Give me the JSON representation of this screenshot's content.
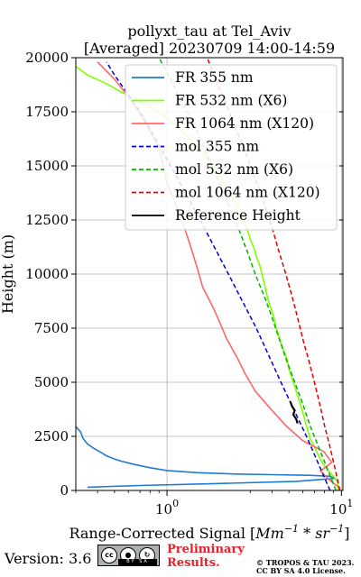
{
  "chart_data": {
    "type": "line",
    "title_line1": "pollyxt_tau at Tel_Aviv",
    "title_line2": "[Averaged] 20230709 14:00-14:59",
    "xlabel_prefix": "Range-Corrected Signal [",
    "xlabel_math": "Mm",
    "xlabel_exp1": "−1",
    "xlabel_mid": " * ",
    "xlabel_math2": "sr",
    "xlabel_exp2": "−1",
    "xlabel_suffix": "]",
    "ylabel": "Height (m)",
    "xscale": "log",
    "xlim": [
      0.3,
      10.2
    ],
    "ylim": [
      0,
      20000
    ],
    "grid": true,
    "legend_position": "top-right",
    "x_ticks": [
      {
        "value": 1,
        "base": "10",
        "exp": "0"
      },
      {
        "value": 10,
        "base": "10",
        "exp": "1"
      }
    ],
    "y_ticks": [
      0,
      2500,
      5000,
      7500,
      10000,
      12500,
      15000,
      17500,
      20000
    ],
    "series": [
      {
        "name": "FR 355 nm",
        "color": "#1f7ad6",
        "style": "solid",
        "points": [
          [
            0.3,
            2950
          ],
          [
            0.32,
            2700
          ],
          [
            0.33,
            2400
          ],
          [
            0.35,
            2150
          ],
          [
            0.38,
            1950
          ],
          [
            0.42,
            1750
          ],
          [
            0.45,
            1600
          ],
          [
            0.5,
            1450
          ],
          [
            0.55,
            1350
          ],
          [
            0.65,
            1200
          ],
          [
            0.8,
            1050
          ],
          [
            1.0,
            920
          ],
          [
            1.5,
            820
          ],
          [
            2.5,
            760
          ],
          [
            4.0,
            730
          ],
          [
            6.5,
            700
          ],
          [
            8.5,
            660
          ],
          [
            9.3,
            560
          ],
          [
            5.5,
            420
          ],
          [
            2.0,
            320
          ],
          [
            0.7,
            230
          ],
          [
            0.35,
            150
          ]
        ]
      },
      {
        "name": "FR 532 nm (X6)",
        "color": "#80ff00",
        "style": "solid",
        "points": [
          [
            9.6,
            30
          ],
          [
            9.5,
            400
          ],
          [
            9.0,
            650
          ],
          [
            8.3,
            950
          ],
          [
            7.8,
            1250
          ],
          [
            7.4,
            1600
          ],
          [
            7.0,
            2000
          ],
          [
            6.6,
            2400
          ],
          [
            6.4,
            2800
          ],
          [
            6.2,
            3200
          ],
          [
            6.0,
            3600
          ],
          [
            5.8,
            4000
          ],
          [
            5.6,
            4400
          ],
          [
            5.4,
            4800
          ],
          [
            5.2,
            5200
          ],
          [
            5.0,
            5600
          ],
          [
            4.9,
            6000
          ],
          [
            4.7,
            6400
          ],
          [
            4.5,
            6800
          ],
          [
            4.35,
            7200
          ],
          [
            4.2,
            7600
          ],
          [
            4.1,
            8000
          ],
          [
            3.95,
            8400
          ],
          [
            3.8,
            8800
          ],
          [
            3.7,
            9200
          ],
          [
            3.6,
            9600
          ],
          [
            3.5,
            10000
          ],
          [
            3.4,
            10400
          ],
          [
            3.25,
            10800
          ],
          [
            3.15,
            11200
          ],
          [
            3.0,
            11600
          ],
          [
            2.9,
            12000
          ],
          [
            2.8,
            12400
          ],
          [
            2.7,
            12800
          ],
          [
            2.5,
            13200
          ],
          [
            2.35,
            13600
          ],
          [
            2.2,
            14000
          ],
          [
            2.05,
            14400
          ],
          [
            1.9,
            14800
          ],
          [
            1.75,
            15200
          ],
          [
            1.6,
            15600
          ],
          [
            1.45,
            16000
          ],
          [
            1.3,
            16400
          ],
          [
            1.15,
            16800
          ],
          [
            1.0,
            17200
          ],
          [
            0.85,
            17600
          ],
          [
            0.7,
            18000
          ],
          [
            0.55,
            18400
          ],
          [
            0.45,
            18800
          ],
          [
            0.35,
            19200
          ],
          [
            0.3,
            19600
          ]
        ]
      },
      {
        "name": "FR 1064 nm (X120)",
        "color": "#ff6666",
        "style": "solid",
        "points": [
          [
            9.8,
            100
          ],
          [
            8.5,
            500
          ],
          [
            7.6,
            900
          ],
          [
            8.8,
            1300
          ],
          [
            7.9,
            1800
          ],
          [
            6.0,
            2300
          ],
          [
            4.8,
            3000
          ],
          [
            3.9,
            3800
          ],
          [
            3.2,
            4600
          ],
          [
            2.8,
            5400
          ],
          [
            2.5,
            6200
          ],
          [
            2.2,
            7000
          ],
          [
            2.0,
            7800
          ],
          [
            1.8,
            8600
          ],
          [
            1.6,
            9400
          ],
          [
            1.5,
            10200
          ],
          [
            1.4,
            11000
          ],
          [
            1.3,
            11800
          ],
          [
            1.2,
            12600
          ],
          [
            1.1,
            13400
          ],
          [
            1.0,
            14200
          ],
          [
            0.95,
            15000
          ],
          [
            0.9,
            15800
          ],
          [
            0.8,
            16600
          ],
          [
            0.7,
            17400
          ],
          [
            0.6,
            18200
          ],
          [
            0.5,
            19000
          ],
          [
            0.4,
            19800
          ]
        ]
      },
      {
        "name": "mol 355 nm",
        "color": "#0000d9",
        "style": "dashed",
        "points": [
          [
            8.6,
            0
          ],
          [
            6.3,
            2500
          ],
          [
            4.5,
            5000
          ],
          [
            3.25,
            7500
          ],
          [
            2.25,
            10000
          ],
          [
            1.55,
            12500
          ],
          [
            1.05,
            15000
          ],
          [
            0.7,
            17500
          ],
          [
            0.5,
            19200
          ],
          [
            0.45,
            19800
          ]
        ]
      },
      {
        "name": "mol 532 nm (X6)",
        "color": "#00b300",
        "style": "dashed",
        "points": [
          [
            9.3,
            0
          ],
          [
            8.3,
            1000
          ],
          [
            7.4,
            2000
          ],
          [
            6.6,
            3000
          ],
          [
            6.0,
            4000
          ],
          [
            5.4,
            5000
          ],
          [
            4.85,
            6000
          ],
          [
            4.4,
            7000
          ],
          [
            4.0,
            8000
          ],
          [
            3.6,
            9000
          ],
          [
            3.2,
            10000
          ],
          [
            2.9,
            11000
          ],
          [
            2.6,
            12000
          ],
          [
            2.3,
            13000
          ],
          [
            2.05,
            14000
          ],
          [
            1.8,
            15000
          ],
          [
            1.6,
            16000
          ],
          [
            1.4,
            17000
          ],
          [
            1.2,
            18000
          ],
          [
            1.05,
            19000
          ],
          [
            0.9,
            20000
          ]
        ]
      },
      {
        "name": "mol 1064 nm (X120)",
        "color": "#e00000",
        "style": "dashed",
        "points": [
          [
            9.8,
            0
          ],
          [
            9.2,
            1000
          ],
          [
            8.6,
            2000
          ],
          [
            8.0,
            3000
          ],
          [
            7.5,
            4000
          ],
          [
            7.0,
            5000
          ],
          [
            6.5,
            6000
          ],
          [
            6.0,
            7000
          ],
          [
            5.6,
            8000
          ],
          [
            5.2,
            9000
          ],
          [
            4.8,
            10000
          ],
          [
            4.4,
            11000
          ],
          [
            4.05,
            12000
          ],
          [
            3.7,
            13000
          ],
          [
            3.35,
            14000
          ],
          [
            3.0,
            15000
          ],
          [
            2.7,
            16000
          ],
          [
            2.4,
            17000
          ],
          [
            2.15,
            18000
          ],
          [
            1.9,
            19000
          ],
          [
            1.7,
            20000
          ]
        ]
      },
      {
        "name": "Reference Height",
        "color": "#000000",
        "style": "solid",
        "points": [
          [
            5.6,
            3100
          ],
          [
            5.5,
            3300
          ],
          [
            5.3,
            3500
          ],
          [
            5.4,
            3700
          ],
          [
            5.2,
            3900
          ],
          [
            5.1,
            4100
          ]
        ]
      }
    ]
  },
  "footer": {
    "version": "Version: 3.6",
    "cc_label": "cc",
    "cc_by": "BY",
    "cc_sa": "SA",
    "preliminary_line1": "Preliminary",
    "preliminary_line2": "Results.",
    "copyright_line1": "© TROPOS & TAU 2023.",
    "copyright_line2": "CC BY SA 4.0 License."
  }
}
